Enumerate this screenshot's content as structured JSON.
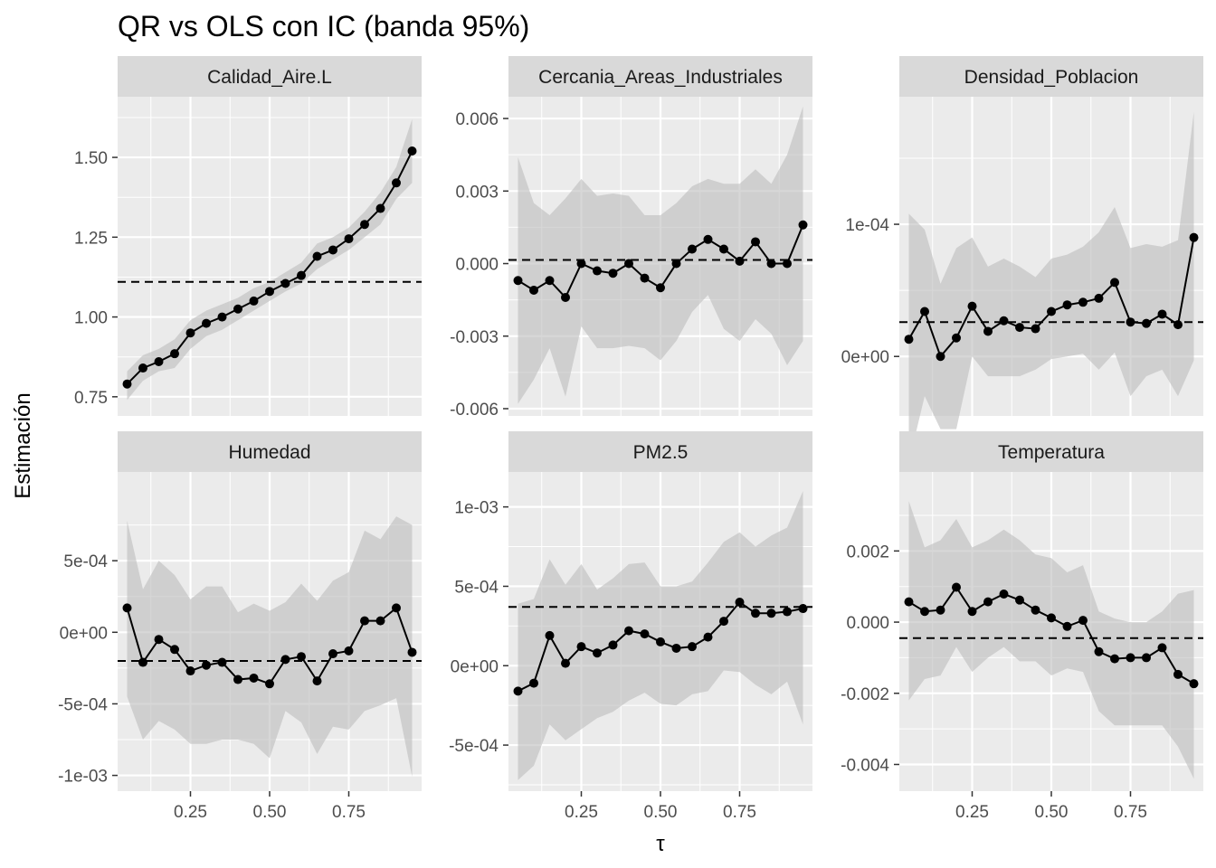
{
  "chart_data": {
    "type": "line",
    "title": "QR vs OLS con IC (banda 95%)",
    "xlabel": "τ",
    "ylabel": "Estimación",
    "x_ticks": [
      0.25,
      0.5,
      0.75
    ],
    "x_tick_labels": [
      "0.25",
      "0.50",
      "0.75"
    ],
    "xlim": [
      0.02,
      0.98
    ],
    "tau": [
      0.05,
      0.1,
      0.15,
      0.2,
      0.25,
      0.3,
      0.35,
      0.4,
      0.45,
      0.5,
      0.55,
      0.6,
      0.65,
      0.7,
      0.75,
      0.8,
      0.85,
      0.9,
      0.95
    ],
    "panels": [
      {
        "strip": "Calidad_Aire.L",
        "ylim": [
          0.69,
          1.69
        ],
        "y_ticks": [
          0.75,
          1.0,
          1.25,
          1.5
        ],
        "y_tick_labels": [
          "0.75",
          "1.00",
          "1.25",
          "1.50"
        ],
        "ols": 1.11,
        "estimate": [
          0.79,
          0.84,
          0.86,
          0.885,
          0.95,
          0.98,
          1.0,
          1.025,
          1.05,
          1.08,
          1.105,
          1.13,
          1.19,
          1.21,
          1.245,
          1.29,
          1.34,
          1.42,
          1.52
        ],
        "lower": [
          0.74,
          0.8,
          0.83,
          0.84,
          0.9,
          0.94,
          0.96,
          0.99,
          1.02,
          1.05,
          1.08,
          1.105,
          1.15,
          1.18,
          1.21,
          1.25,
          1.29,
          1.37,
          1.42
        ],
        "upper": [
          0.83,
          0.88,
          0.9,
          0.93,
          0.99,
          1.02,
          1.04,
          1.06,
          1.09,
          1.11,
          1.14,
          1.17,
          1.23,
          1.25,
          1.28,
          1.33,
          1.39,
          1.47,
          1.62
        ]
      },
      {
        "strip": "Cercania_Areas_Industriales",
        "ylim": [
          -0.0063,
          0.0069
        ],
        "y_ticks": [
          -0.006,
          -0.003,
          0.0,
          0.003,
          0.006
        ],
        "y_tick_labels": [
          "-0.006",
          "-0.003",
          "0.000",
          "0.003",
          "0.006"
        ],
        "ols": 0.00015,
        "estimate": [
          -0.0007,
          -0.0011,
          -0.0007,
          -0.0014,
          0.0,
          -0.0003,
          -0.0004,
          0.0,
          -0.0006,
          -0.001,
          0.0,
          0.0006,
          0.001,
          0.0006,
          0.0001,
          0.0009,
          0.0,
          0.0,
          0.0016
        ],
        "lower": [
          -0.0058,
          -0.0048,
          -0.0035,
          -0.0055,
          -0.0026,
          -0.0035,
          -0.0035,
          -0.0034,
          -0.0035,
          -0.004,
          -0.0032,
          -0.002,
          -0.0013,
          -0.0027,
          -0.0032,
          -0.0023,
          -0.0029,
          -0.0042,
          -0.0032
        ],
        "upper": [
          0.0044,
          0.0025,
          0.002,
          0.0027,
          0.0035,
          0.0028,
          0.0029,
          0.0028,
          0.002,
          0.002,
          0.0025,
          0.0032,
          0.0035,
          0.0033,
          0.0033,
          0.0039,
          0.0033,
          0.0045,
          0.0065
        ]
      },
      {
        "strip": "Densidad_Poblacion",
        "ylim": [
          -4.5e-05,
          0.0001965
        ],
        "y_ticks": [
          0.0,
          0.0001
        ],
        "y_tick_labels": [
          "0e+00",
          "1e-04"
        ],
        "ols": 2.6e-05,
        "estimate": [
          1.3e-05,
          3.4e-05,
          0.0,
          1.4e-05,
          3.8e-05,
          1.9e-05,
          2.7e-05,
          2.2e-05,
          2.1e-05,
          3.4e-05,
          3.9e-05,
          4.1e-05,
          4.4e-05,
          5.6e-05,
          2.6e-05,
          2.5e-05,
          3.2e-05,
          2.4e-05,
          9e-05
        ],
        "lower": [
          -8e-05,
          -3e-05,
          -5.5e-05,
          -5.5e-05,
          0.0,
          -1.5e-05,
          -1.5e-05,
          -1.5e-05,
          -1e-05,
          -2e-06,
          0.0,
          2e-06,
          -1e-05,
          3e-06,
          -3e-05,
          -1.5e-05,
          -1e-05,
          -3e-05,
          -3e-06
        ],
        "upper": [
          0.000108,
          9.6e-05,
          5.5e-05,
          8.2e-05,
          9e-05,
          6.8e-05,
          7.4e-05,
          6.8e-05,
          6e-05,
          7.4e-05,
          7.7e-05,
          8.3e-05,
          9.4e-05,
          0.000113,
          8.2e-05,
          8.5e-05,
          8.3e-05,
          8.8e-05,
          0.000185
        ]
      },
      {
        "strip": "Humedad",
        "ylim": [
          -0.00111,
          0.00112
        ],
        "y_ticks": [
          -0.001,
          -0.0005,
          0.0,
          0.0005
        ],
        "y_tick_labels": [
          "-1e-03",
          "-5e-04",
          "0e+00",
          "5e-04"
        ],
        "ols": -0.0002,
        "estimate": [
          0.00017,
          -0.00021,
          -5e-05,
          -0.00012,
          -0.00027,
          -0.00023,
          -0.00021,
          -0.00033,
          -0.00032,
          -0.00036,
          -0.00019,
          -0.00017,
          -0.00034,
          -0.00015,
          -0.00013,
          8e-05,
          8e-05,
          0.00017,
          -0.00014
        ],
        "lower": [
          -0.00045,
          -0.00075,
          -0.00062,
          -0.00068,
          -0.00078,
          -0.00078,
          -0.00075,
          -0.00075,
          -0.00078,
          -0.00088,
          -0.00055,
          -0.00063,
          -0.00085,
          -0.00066,
          -0.00068,
          -0.00055,
          -0.00051,
          -0.00046,
          -0.00101
        ],
        "upper": [
          0.00078,
          0.0003,
          0.0005,
          0.0004,
          0.00023,
          0.00032,
          0.00032,
          0.00014,
          0.0002,
          0.00015,
          0.00021,
          0.00034,
          0.00022,
          0.00036,
          0.00042,
          0.00071,
          0.00065,
          0.00081,
          0.00075
        ]
      },
      {
        "strip": "PM2.5",
        "ylim": [
          -0.00079,
          0.00122
        ],
        "y_ticks": [
          -0.0005,
          0.0,
          0.0005,
          0.001
        ],
        "y_tick_labels": [
          "-5e-04",
          "0e+00",
          "5e-04",
          "1e-03"
        ],
        "ols": 0.00037,
        "estimate": [
          -0.00016,
          -0.00011,
          0.00019,
          1.5e-05,
          0.00012,
          8e-05,
          0.00013,
          0.00022,
          0.0002,
          0.00015,
          0.00011,
          0.00012,
          0.00018,
          0.00028,
          0.0004,
          0.00033,
          0.00033,
          0.00034,
          0.00036
        ],
        "lower": [
          -0.00072,
          -0.00063,
          -0.00037,
          -0.00047,
          -0.0004,
          -0.00033,
          -0.00029,
          -0.00022,
          -0.00017,
          -0.00024,
          -0.00025,
          -0.00018,
          -0.00016,
          -3e-05,
          -4e-05,
          -0.00012,
          -0.00018,
          -0.0001,
          -0.00037
        ],
        "upper": [
          0.00039,
          0.00042,
          0.00067,
          0.00051,
          0.00064,
          0.00048,
          0.00055,
          0.00064,
          0.00065,
          0.0005,
          0.0005,
          0.00053,
          0.00065,
          0.00078,
          0.00084,
          0.00075,
          0.00082,
          0.00087,
          0.0011
        ]
      },
      {
        "strip": "Temperatura",
        "ylim": [
          -0.00475,
          0.00422
        ],
        "y_ticks": [
          -0.004,
          -0.002,
          0.0,
          0.002
        ],
        "y_tick_labels": [
          "-0.004",
          "-0.002",
          "0.000",
          "0.002"
        ],
        "ols": -0.00045,
        "estimate": [
          0.00057,
          0.0003,
          0.00034,
          0.00098,
          0.0003,
          0.00057,
          0.00079,
          0.00062,
          0.00034,
          0.00012,
          -0.00012,
          5e-05,
          -0.00083,
          -0.00103,
          -0.001,
          -0.001,
          -0.00072,
          -0.00147,
          -0.00173
        ],
        "lower": [
          -0.0022,
          -0.0016,
          -0.0015,
          -0.0007,
          -0.0014,
          -0.001,
          -0.0007,
          -0.0011,
          -0.0011,
          -0.0015,
          -0.0013,
          -0.0014,
          -0.0025,
          -0.0029,
          -0.0029,
          -0.0029,
          -0.0029,
          -0.0035,
          -0.0044
        ],
        "upper": [
          0.0034,
          0.0021,
          0.0023,
          0.0029,
          0.0021,
          0.0023,
          0.0026,
          0.0023,
          0.0019,
          0.0018,
          0.0014,
          0.0016,
          0.0003,
          0.0001,
          0.0,
          0.0,
          0.0003,
          0.0008,
          0.0009
        ]
      }
    ]
  }
}
